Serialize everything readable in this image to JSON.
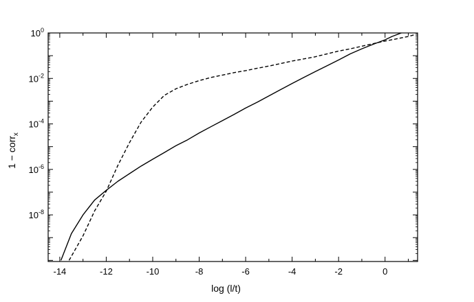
{
  "chart_data": {
    "type": "line",
    "title": "",
    "xlabel": "log (l/t)",
    "ylabel_main": "1 − corr",
    "ylabel_sub": "x",
    "xlim": [
      -14.5,
      1.4
    ],
    "ylim_log10": [
      -10.05,
      0
    ],
    "y_scale": "log",
    "grid": false,
    "legend": "none",
    "x_ticks": [
      -14,
      -12,
      -10,
      -8,
      -6,
      -4,
      -2,
      0
    ],
    "x_tick_labels": [
      "-14",
      "-12",
      "-10",
      "-8",
      "-6",
      "-4",
      "-2",
      "0"
    ],
    "y_ticks_log10": [
      0,
      -2,
      -4,
      -6,
      -8
    ],
    "y_tick_labels": [
      {
        "base": "10",
        "exp": "0"
      },
      {
        "base": "10",
        "exp": "-2"
      },
      {
        "base": "10",
        "exp": "-4"
      },
      {
        "base": "10",
        "exp": "-6"
      },
      {
        "base": "10",
        "exp": "-8"
      }
    ],
    "series": [
      {
        "style": "solid",
        "color": "#000000",
        "x": [
          -13.95,
          -13.5,
          -13.0,
          -12.5,
          -12.0,
          -11.5,
          -11.0,
          -10.5,
          -10.0,
          -9.5,
          -9.0,
          -8.5,
          -8.0,
          -7.5,
          -7.0,
          -6.5,
          -6.0,
          -5.5,
          -5.0,
          -4.5,
          -4.0,
          -3.5,
          -3.0,
          -2.5,
          -2.0,
          -1.5,
          -1.0,
          -0.5,
          0.0,
          0.3,
          0.7
        ],
        "y": [
          1e-10,
          1.5e-09,
          1e-08,
          4.5e-08,
          1.2e-07,
          3e-07,
          6.5e-07,
          1.4e-06,
          2.8e-06,
          5.5e-06,
          1.1e-05,
          2e-05,
          4e-05,
          7.5e-05,
          0.00014,
          0.00026,
          0.0005,
          0.0009,
          0.0017,
          0.0032,
          0.006,
          0.011,
          0.02,
          0.036,
          0.065,
          0.12,
          0.2,
          0.32,
          0.5,
          0.7,
          1.0
        ]
      },
      {
        "style": "dashed",
        "color": "#000000",
        "x": [
          -13.6,
          -13.0,
          -12.5,
          -12.0,
          -11.5,
          -11.0,
          -10.5,
          -10.0,
          -9.5,
          -9.0,
          -8.5,
          -8.0,
          -7.5,
          -7.0,
          -6.5,
          -6.0,
          -5.5,
          -5.0,
          -4.5,
          -4.0,
          -3.5,
          -3.0,
          -2.5,
          -2.0,
          -1.5,
          -1.0,
          -0.5,
          0.0,
          0.5,
          1.0,
          1.3
        ],
        "y": [
          1e-10,
          1.2e-09,
          1.5e-08,
          1.1e-07,
          1.5e-06,
          1.5e-05,
          0.00012,
          0.00055,
          0.0018,
          0.0035,
          0.0055,
          0.008,
          0.011,
          0.014,
          0.018,
          0.022,
          0.028,
          0.035,
          0.045,
          0.058,
          0.072,
          0.09,
          0.12,
          0.16,
          0.2,
          0.26,
          0.34,
          0.44,
          0.55,
          0.7,
          0.85
        ]
      }
    ]
  }
}
